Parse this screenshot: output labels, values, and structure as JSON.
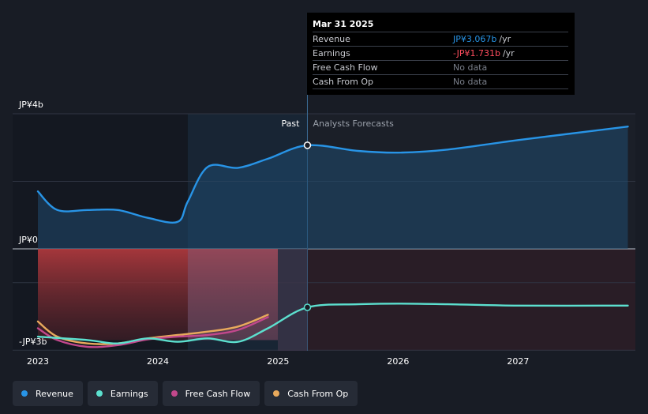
{
  "chart_data": {
    "type": "line",
    "y_axis": {
      "unit": "JPY billions",
      "ylim": [
        -3,
        4
      ],
      "tick_labels": [
        "JP¥4b",
        "JP¥0",
        "-JP¥3b"
      ]
    },
    "x_axis": {
      "tick_labels": [
        "2023",
        "2024",
        "2025",
        "2026",
        "2027"
      ]
    },
    "zones": {
      "past_label": "Past",
      "forecast_label": "Analysts Forecasts",
      "divider_date": "2025-03-31"
    },
    "series": [
      {
        "name": "Revenue",
        "color": "#2894e6",
        "points": [
          [
            "2023-01-01",
            1.7
          ],
          [
            "2023-03-01",
            1.15
          ],
          [
            "2023-06-01",
            1.15
          ],
          [
            "2023-09-01",
            1.15
          ],
          [
            "2023-12-01",
            0.92
          ],
          [
            "2024-03-01",
            0.8
          ],
          [
            "2024-04-01",
            1.4
          ],
          [
            "2024-06-01",
            2.43
          ],
          [
            "2024-09-01",
            2.4
          ],
          [
            "2024-12-01",
            2.67
          ],
          [
            "2025-03-31",
            3.067
          ],
          [
            "2025-09-01",
            2.9
          ],
          [
            "2026-01-01",
            2.85
          ],
          [
            "2026-06-01",
            2.94
          ],
          [
            "2027-01-01",
            3.22
          ],
          [
            "2027-12-01",
            3.62
          ]
        ]
      },
      {
        "name": "Earnings",
        "color": "#5ce0cf",
        "points": [
          [
            "2023-01-01",
            -2.6
          ],
          [
            "2023-06-01",
            -2.7
          ],
          [
            "2023-09-01",
            -2.8
          ],
          [
            "2023-12-01",
            -2.65
          ],
          [
            "2024-03-01",
            -2.75
          ],
          [
            "2024-06-01",
            -2.65
          ],
          [
            "2024-09-01",
            -2.75
          ],
          [
            "2024-12-01",
            -2.35
          ],
          [
            "2025-03-31",
            -1.731
          ],
          [
            "2025-09-01",
            -1.64
          ],
          [
            "2026-01-01",
            -1.62
          ],
          [
            "2026-06-01",
            -1.64
          ],
          [
            "2027-01-01",
            -1.68
          ],
          [
            "2027-12-01",
            -1.68
          ]
        ]
      },
      {
        "name": "Free Cash Flow",
        "color": "#c2488c",
        "points": [
          [
            "2023-01-01",
            -2.35
          ],
          [
            "2023-03-01",
            -2.7
          ],
          [
            "2023-06-01",
            -2.9
          ],
          [
            "2023-09-01",
            -2.85
          ],
          [
            "2023-12-01",
            -2.68
          ],
          [
            "2024-03-01",
            -2.6
          ],
          [
            "2024-06-01",
            -2.55
          ],
          [
            "2024-09-01",
            -2.4
          ],
          [
            "2024-12-01",
            -2.02
          ]
        ]
      },
      {
        "name": "Cash From Op",
        "color": "#e8a95c",
        "points": [
          [
            "2023-01-01",
            -2.15
          ],
          [
            "2023-03-01",
            -2.6
          ],
          [
            "2023-06-01",
            -2.8
          ],
          [
            "2023-09-01",
            -2.8
          ],
          [
            "2023-12-01",
            -2.65
          ],
          [
            "2024-03-01",
            -2.55
          ],
          [
            "2024-06-01",
            -2.45
          ],
          [
            "2024-09-01",
            -2.3
          ],
          [
            "2024-12-01",
            -1.95
          ]
        ]
      }
    ],
    "tooltip": {
      "date": "Mar 31 2025",
      "rows": [
        {
          "label": "Revenue",
          "value": "JP¥3.067b",
          "unit": "/yr",
          "color": "#2894e6"
        },
        {
          "label": "Earnings",
          "value": "-JP¥1.731b",
          "unit": "/yr",
          "color": "#ff4d5e"
        },
        {
          "label": "Free Cash Flow",
          "value": "No data",
          "unit": "",
          "color": "#7a7f8a"
        },
        {
          "label": "Cash From Op",
          "value": "No data",
          "unit": "",
          "color": "#7a7f8a"
        }
      ]
    },
    "legend": [
      {
        "name": "Revenue",
        "color": "#2894e6"
      },
      {
        "name": "Earnings",
        "color": "#5ce0cf"
      },
      {
        "name": "Free Cash Flow",
        "color": "#c2488c"
      },
      {
        "name": "Cash From Op",
        "color": "#e8a95c"
      }
    ]
  }
}
